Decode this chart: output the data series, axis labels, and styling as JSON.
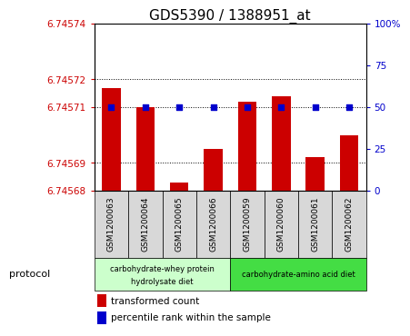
{
  "title": "GDS5390 / 1388951_at",
  "samples": [
    "GSM1200063",
    "GSM1200064",
    "GSM1200065",
    "GSM1200066",
    "GSM1200059",
    "GSM1200060",
    "GSM1200061",
    "GSM1200062"
  ],
  "red_values": [
    6.745717,
    6.74571,
    6.745683,
    6.745695,
    6.745712,
    6.745714,
    6.745692,
    6.7457
  ],
  "blue_values": [
    50,
    50,
    50,
    50,
    50,
    50,
    50,
    50
  ],
  "ylim_left": [
    6.74568,
    6.74574
  ],
  "ylim_right": [
    0,
    100
  ],
  "yticks_left": [
    6.74568,
    6.74569,
    6.74571,
    6.74572,
    6.74574
  ],
  "yticks_right": [
    0,
    25,
    50,
    75,
    100
  ],
  "yticklabels_left": [
    "6.74568",
    "6.74569",
    "6.74571",
    "6.74572",
    "6.74574"
  ],
  "yticklabels_right": [
    "0",
    "25",
    "50",
    "75",
    "100%"
  ],
  "bar_color": "#cc0000",
  "dot_color": "#0000cc",
  "bg_color": "#d8d8d8",
  "group1_label_line1": "carbohydrate-whey protein",
  "group1_label_line2": "hydrolysate diet",
  "group2_label": "carbohydrate-amino acid diet",
  "group1_color": "#ccffcc",
  "group2_color": "#44dd44",
  "legend_red": "transformed count",
  "legend_blue": "percentile rank within the sample",
  "protocol_label": "protocol"
}
